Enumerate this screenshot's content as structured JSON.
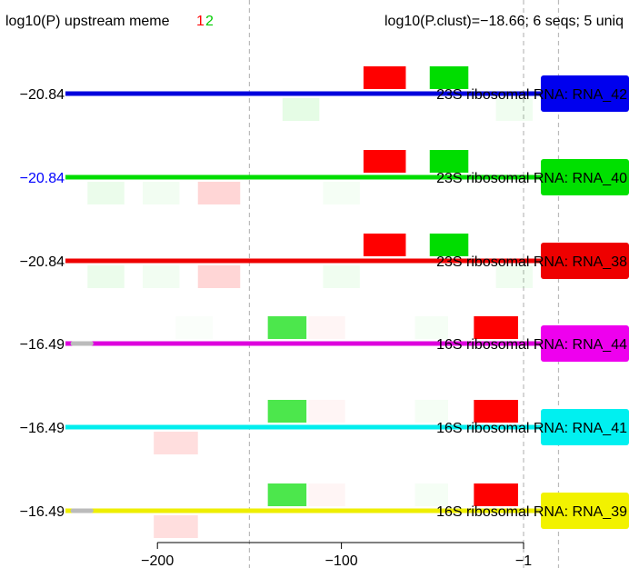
{
  "chart_data": {
    "type": "motif-track",
    "left_title": "log10(P) upstream meme",
    "motif_labels": [
      {
        "text": "1",
        "color": "#ff0000"
      },
      {
        "text": "2",
        "color": "#00cc00"
      }
    ],
    "right_title": "log10(P.clust)=−18.66; 6 seqs; 5 uniq",
    "xlim": [
      -250,
      -1
    ],
    "x_ticks": [
      {
        "value": -200,
        "label": "−200"
      },
      {
        "value": -100,
        "label": "−100"
      },
      {
        "value": -1,
        "label": "−1"
      }
    ],
    "gridlines": [
      -150,
      -1,
      18
    ],
    "sequences": [
      {
        "pvalue_label": "−20.84",
        "pvalue_color": "#000000",
        "name": "23S ribosomal RNA: RNA_42",
        "line_color": "#0000dd",
        "label_bg": "#0000ee",
        "gap_marker": null,
        "motifs": [
          {
            "motif": 1,
            "start": -88,
            "end": -65,
            "strand": "+",
            "alpha": 1.0
          },
          {
            "motif": 2,
            "start": -52,
            "end": -31,
            "strand": "+",
            "alpha": 1.0
          },
          {
            "motif": 2,
            "start": -132,
            "end": -112,
            "strand": "-",
            "alpha": 0.1
          },
          {
            "motif": 2,
            "start": -16,
            "end": 4,
            "strand": "-",
            "alpha": 0.06
          }
        ]
      },
      {
        "pvalue_label": "−20.84",
        "pvalue_color": "#0000ff",
        "name": "23S ribosomal RNA: RNA_40",
        "line_color": "#00dd00",
        "label_bg": "#00e000",
        "gap_marker": null,
        "motifs": [
          {
            "motif": 1,
            "start": -88,
            "end": -65,
            "strand": "+",
            "alpha": 1.0
          },
          {
            "motif": 2,
            "start": -52,
            "end": -31,
            "strand": "+",
            "alpha": 1.0
          },
          {
            "motif": 2,
            "start": -238,
            "end": -218,
            "strand": "-",
            "alpha": 0.08
          },
          {
            "motif": 2,
            "start": -208,
            "end": -188,
            "strand": "-",
            "alpha": 0.05
          },
          {
            "motif": 1,
            "start": -178,
            "end": -155,
            "strand": "-",
            "alpha": 0.16
          },
          {
            "motif": 2,
            "start": -110,
            "end": -90,
            "strand": "-",
            "alpha": 0.04
          }
        ]
      },
      {
        "pvalue_label": "−20.84",
        "pvalue_color": "#000000",
        "name": "23S ribosomal RNA: RNA_38",
        "line_color": "#ee0000",
        "label_bg": "#ee0000",
        "gap_marker": null,
        "motifs": [
          {
            "motif": 1,
            "start": -88,
            "end": -65,
            "strand": "+",
            "alpha": 1.0
          },
          {
            "motif": 2,
            "start": -52,
            "end": -31,
            "strand": "+",
            "alpha": 1.0
          },
          {
            "motif": 2,
            "start": -238,
            "end": -218,
            "strand": "-",
            "alpha": 0.08
          },
          {
            "motif": 2,
            "start": -208,
            "end": -188,
            "strand": "-",
            "alpha": 0.05
          },
          {
            "motif": 1,
            "start": -178,
            "end": -155,
            "strand": "-",
            "alpha": 0.16
          },
          {
            "motif": 2,
            "start": -110,
            "end": -90,
            "strand": "-",
            "alpha": 0.06
          },
          {
            "motif": 2,
            "start": -16,
            "end": 4,
            "strand": "-",
            "alpha": 0.06
          }
        ]
      },
      {
        "pvalue_label": "−16.49",
        "pvalue_color": "#000000",
        "name": "16S ribosomal RNA: RNA_44",
        "line_color": "#dd00dd",
        "label_bg": "#ee00ee",
        "gap_marker": {
          "start": -246,
          "end": -236
        },
        "motifs": [
          {
            "motif": 2,
            "start": -140,
            "end": -119,
            "strand": "+",
            "alpha": 0.7
          },
          {
            "motif": 1,
            "start": -28,
            "end": -4,
            "strand": "+",
            "alpha": 1.0
          },
          {
            "motif": 1,
            "start": -118,
            "end": -98,
            "strand": "+",
            "alpha": 0.04
          },
          {
            "motif": 2,
            "start": -60,
            "end": -42,
            "strand": "+",
            "alpha": 0.04
          },
          {
            "motif": 2,
            "start": -190,
            "end": -170,
            "strand": "+",
            "alpha": 0.02
          }
        ]
      },
      {
        "pvalue_label": "−16.49",
        "pvalue_color": "#000000",
        "name": "16S ribosomal RNA: RNA_41",
        "line_color": "#00eeee",
        "label_bg": "#00f0f0",
        "gap_marker": null,
        "motifs": [
          {
            "motif": 2,
            "start": -140,
            "end": -119,
            "strand": "+",
            "alpha": 0.7
          },
          {
            "motif": 1,
            "start": -28,
            "end": -4,
            "strand": "+",
            "alpha": 1.0
          },
          {
            "motif": 1,
            "start": -118,
            "end": -98,
            "strand": "+",
            "alpha": 0.04
          },
          {
            "motif": 2,
            "start": -60,
            "end": -42,
            "strand": "+",
            "alpha": 0.04
          },
          {
            "motif": 1,
            "start": -202,
            "end": -178,
            "strand": "-",
            "alpha": 0.13
          }
        ]
      },
      {
        "pvalue_label": "−16.49",
        "pvalue_color": "#000000",
        "name": "16S ribosomal RNA: RNA_39",
        "line_color": "#eeee00",
        "label_bg": "#f2f200",
        "gap_marker": {
          "start": -246,
          "end": -236
        },
        "motifs": [
          {
            "motif": 2,
            "start": -140,
            "end": -119,
            "strand": "+",
            "alpha": 0.7
          },
          {
            "motif": 1,
            "start": -28,
            "end": -4,
            "strand": "+",
            "alpha": 1.0
          },
          {
            "motif": 1,
            "start": -118,
            "end": -98,
            "strand": "+",
            "alpha": 0.04
          },
          {
            "motif": 2,
            "start": -60,
            "end": -42,
            "strand": "+",
            "alpha": 0.04
          },
          {
            "motif": 1,
            "start": -202,
            "end": -178,
            "strand": "-",
            "alpha": 0.13
          }
        ]
      }
    ]
  }
}
